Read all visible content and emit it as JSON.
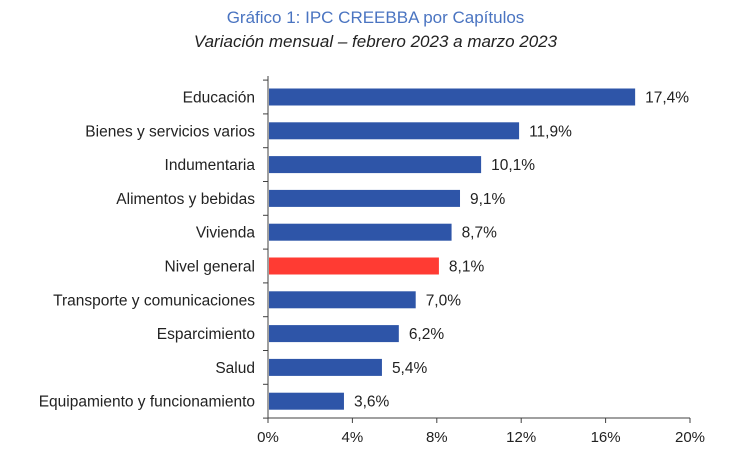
{
  "chart_data": {
    "type": "bar",
    "orientation": "horizontal",
    "title": "Gráfico 1: IPC CREEBBA por Capítulos",
    "subtitle": "Variación mensual – febrero 2023 a marzo 2023",
    "categories": [
      "Educación",
      "Bienes y servicios varios",
      "Indumentaria",
      "Alimentos y bebidas",
      "Vivienda",
      "Nivel general",
      "Transporte y comunicaciones",
      "Esparcimiento",
      "Salud",
      "Equipamiento y funcionamiento"
    ],
    "values": [
      17.4,
      11.9,
      10.1,
      9.1,
      8.7,
      8.1,
      7.0,
      6.2,
      5.4,
      3.6
    ],
    "value_labels": [
      "17,4%",
      "11,9%",
      "10,1%",
      "9,1%",
      "8,7%",
      "8,1%",
      "7,0%",
      "6,2%",
      "5,4%",
      "3,6%"
    ],
    "highlight": "Nivel general",
    "xlim": [
      0,
      20
    ],
    "xticks": [
      0,
      4,
      8,
      12,
      16,
      20
    ],
    "xtick_labels": [
      "0%",
      "4%",
      "8%",
      "12%",
      "16%",
      "20%"
    ],
    "xlabel": "",
    "ylabel": "",
    "grid": false,
    "legend": "none",
    "colors": {
      "bar": "#2e55a8",
      "highlight": "#ff3b33",
      "axis": "#404040",
      "text": "#222222"
    }
  }
}
